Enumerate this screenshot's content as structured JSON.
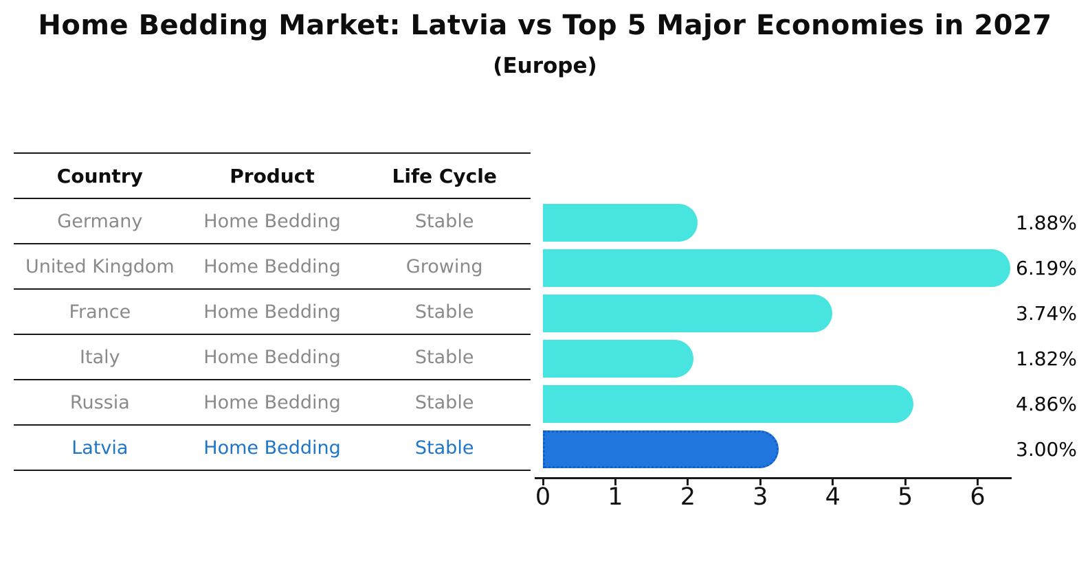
{
  "title": "Home Bedding Market: Latvia vs Top 5 Major Economies in 2027",
  "subtitle": "(Europe)",
  "table": {
    "headers": [
      "Country",
      "Product",
      "Life Cycle"
    ],
    "rows": [
      {
        "country": "Germany",
        "product": "Home Bedding",
        "life_cycle": "Stable",
        "highlight": false
      },
      {
        "country": "United Kingdom",
        "product": "Home Bedding",
        "life_cycle": "Growing",
        "highlight": false
      },
      {
        "country": "France",
        "product": "Home Bedding",
        "life_cycle": "Stable",
        "highlight": false
      },
      {
        "country": "Italy",
        "product": "Home Bedding",
        "life_cycle": "Stable",
        "highlight": false
      },
      {
        "country": "Russia",
        "product": "Home Bedding",
        "life_cycle": "Stable",
        "highlight": false
      },
      {
        "country": "Latvia",
        "product": "Home Bedding",
        "life_cycle": "Stable",
        "highlight": true
      }
    ]
  },
  "chart_data": {
    "type": "bar",
    "orientation": "horizontal",
    "categories": [
      "Germany",
      "United Kingdom",
      "France",
      "Italy",
      "Russia",
      "Latvia"
    ],
    "values": [
      1.88,
      6.19,
      3.74,
      1.82,
      4.86,
      3.0
    ],
    "value_labels": [
      "1.88%",
      "6.19%",
      "3.74%",
      "1.82%",
      "4.86%",
      "3.00%"
    ],
    "highlight_index": 5,
    "x_ticks": [
      "0",
      "1",
      "2",
      "3",
      "4",
      "5",
      "6"
    ],
    "xlim": [
      0,
      6.45
    ],
    "grid": false,
    "legend": false,
    "bar_color": "#47E4E0",
    "highlight_bar_color": "#2176DD",
    "highlight_border_color": "#0F5FC8",
    "value_label_color": "#0A0A0A",
    "row_text_color": "#8A8A8A",
    "highlight_text_color": "#1F76C9"
  }
}
